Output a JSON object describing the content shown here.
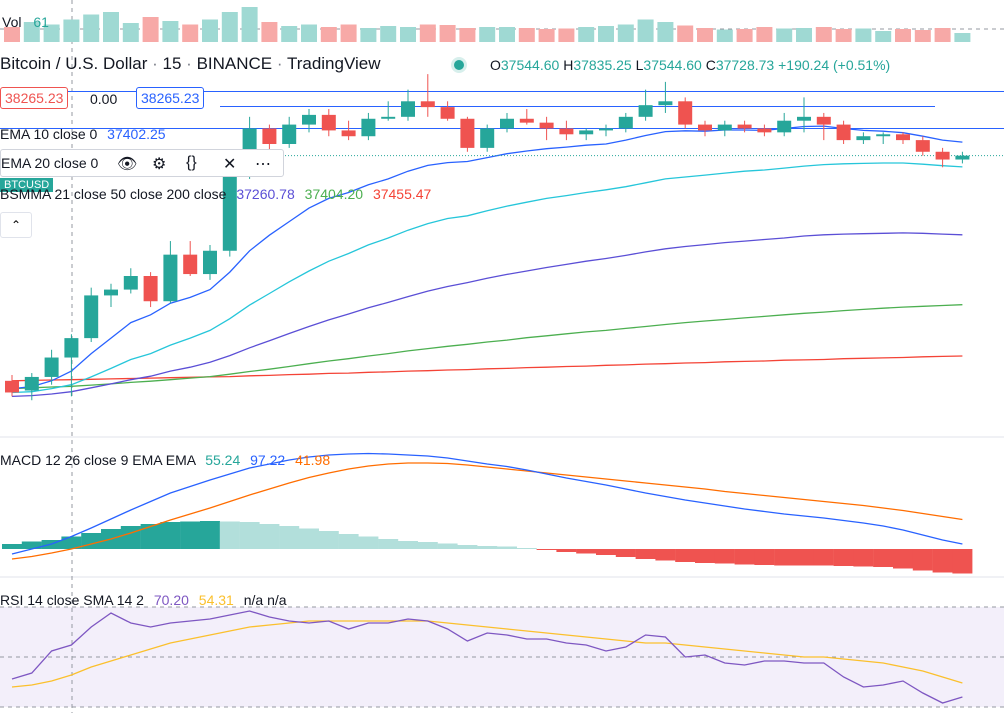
{
  "volume": {
    "label": "Vol",
    "value": "61"
  },
  "header": {
    "symbol": "Bitcoin / U.S. Dollar",
    "interval": "15",
    "exchange": "BINANCE",
    "source": "TradingView",
    "open_label": "O",
    "open": "37544.60",
    "high_label": "H",
    "high": "37835.25",
    "low_label": "L",
    "low": "37544.60",
    "close_label": "C",
    "close": "37728.73",
    "change": "+190.24 (+0.51%)"
  },
  "order": {
    "sell": "38265.23",
    "spread": "0.00",
    "buy": "38265.23"
  },
  "indicators": {
    "ema10": {
      "label": "EMA 10 close 0",
      "value": "37402.25"
    },
    "ema20": {
      "label": "EMA 20 close 0"
    },
    "smma": {
      "label": "BSMMA 21 close 50 close 200 close",
      "v1": "37260.78",
      "v2": "37404.20",
      "v3": "37455.47"
    },
    "macd": {
      "label": "MACD 12 26 close 9 EMA EMA",
      "v1": "55.24",
      "v2": "97.22",
      "v3": "41.98"
    },
    "rsi": {
      "label": "RSI 14 close SMA 14 2",
      "v1": "70.20",
      "v2": "54.31",
      "v3": "n/a",
      "v4": "n/a"
    }
  },
  "ticker_tag": "BTCUSD",
  "colors": {
    "up": "#26a69a",
    "down": "#ef5350",
    "ema10": "#2962ff",
    "ema20": "#26c6da",
    "smma21": "#5b4fd6",
    "smma50": "#4caf50",
    "smma200": "#f44336",
    "macd": "#2962ff",
    "signal": "#ff6d00",
    "rsi": "#7e57c2",
    "rsi_sma": "#fbc02d"
  },
  "chart_data": {
    "type": "candlestick",
    "candles": [
      {
        "o": 37520,
        "h": 37535,
        "l": 37480,
        "c": 37490
      },
      {
        "o": 37495,
        "h": 37540,
        "l": 37470,
        "c": 37530
      },
      {
        "o": 37530,
        "h": 37600,
        "l": 37510,
        "c": 37580
      },
      {
        "o": 37580,
        "h": 37640,
        "l": 37480,
        "c": 37630
      },
      {
        "o": 37630,
        "h": 37760,
        "l": 37620,
        "c": 37740
      },
      {
        "o": 37740,
        "h": 37770,
        "l": 37710,
        "c": 37755
      },
      {
        "o": 37755,
        "h": 37810,
        "l": 37745,
        "c": 37790
      },
      {
        "o": 37790,
        "h": 37800,
        "l": 37710,
        "c": 37725
      },
      {
        "o": 37725,
        "h": 37880,
        "l": 37720,
        "c": 37845
      },
      {
        "o": 37845,
        "h": 37880,
        "l": 37790,
        "c": 37795
      },
      {
        "o": 37795,
        "h": 37870,
        "l": 37780,
        "c": 37855
      },
      {
        "o": 37855,
        "h": 38070,
        "l": 37840,
        "c": 38050
      },
      {
        "o": 38050,
        "h": 38200,
        "l": 38040,
        "c": 38170
      },
      {
        "o": 38170,
        "h": 38180,
        "l": 38080,
        "c": 38130
      },
      {
        "o": 38130,
        "h": 38200,
        "l": 38120,
        "c": 38180
      },
      {
        "o": 38180,
        "h": 38220,
        "l": 38160,
        "c": 38205
      },
      {
        "o": 38205,
        "h": 38220,
        "l": 38150,
        "c": 38165
      },
      {
        "o": 38165,
        "h": 38190,
        "l": 38140,
        "c": 38150
      },
      {
        "o": 38150,
        "h": 38210,
        "l": 38140,
        "c": 38195
      },
      {
        "o": 38195,
        "h": 38240,
        "l": 38190,
        "c": 38200
      },
      {
        "o": 38200,
        "h": 38270,
        "l": 38190,
        "c": 38240
      },
      {
        "o": 38240,
        "h": 38310,
        "l": 38200,
        "c": 38225
      },
      {
        "o": 38225,
        "h": 38240,
        "l": 38190,
        "c": 38195
      },
      {
        "o": 38195,
        "h": 38200,
        "l": 38110,
        "c": 38120
      },
      {
        "o": 38120,
        "h": 38180,
        "l": 38110,
        "c": 38170
      },
      {
        "o": 38170,
        "h": 38210,
        "l": 38160,
        "c": 38195
      },
      {
        "o": 38195,
        "h": 38220,
        "l": 38180,
        "c": 38185
      },
      {
        "o": 38185,
        "h": 38200,
        "l": 38140,
        "c": 38170
      },
      {
        "o": 38170,
        "h": 38190,
        "l": 38140,
        "c": 38155
      },
      {
        "o": 38155,
        "h": 38170,
        "l": 38140,
        "c": 38165
      },
      {
        "o": 38165,
        "h": 38180,
        "l": 38150,
        "c": 38170
      },
      {
        "o": 38170,
        "h": 38210,
        "l": 38160,
        "c": 38200
      },
      {
        "o": 38200,
        "h": 38270,
        "l": 38190,
        "c": 38230
      },
      {
        "o": 38230,
        "h": 38290,
        "l": 38210,
        "c": 38240
      },
      {
        "o": 38240,
        "h": 38250,
        "l": 38170,
        "c": 38180
      },
      {
        "o": 38180,
        "h": 38190,
        "l": 38150,
        "c": 38165
      },
      {
        "o": 38165,
        "h": 38190,
        "l": 38150,
        "c": 38180
      },
      {
        "o": 38180,
        "h": 38190,
        "l": 38160,
        "c": 38170
      },
      {
        "o": 38170,
        "h": 38180,
        "l": 38150,
        "c": 38160
      },
      {
        "o": 38160,
        "h": 38210,
        "l": 38150,
        "c": 38190
      },
      {
        "o": 38190,
        "h": 38250,
        "l": 38160,
        "c": 38200
      },
      {
        "o": 38200,
        "h": 38210,
        "l": 38140,
        "c": 38180
      },
      {
        "o": 38180,
        "h": 38190,
        "l": 38130,
        "c": 38140
      },
      {
        "o": 38140,
        "h": 38160,
        "l": 38130,
        "c": 38150
      },
      {
        "o": 38150,
        "h": 38160,
        "l": 38130,
        "c": 38155
      },
      {
        "o": 38155,
        "h": 38160,
        "l": 38130,
        "c": 38140
      },
      {
        "o": 38140,
        "h": 38150,
        "l": 38100,
        "c": 38110
      },
      {
        "o": 38110,
        "h": 38120,
        "l": 38070,
        "c": 38090
      },
      {
        "o": 38090,
        "h": 38110,
        "l": 38080,
        "c": 38100
      }
    ],
    "ema10": [
      37500,
      37505,
      37520,
      37545,
      37590,
      37630,
      37670,
      37690,
      37720,
      37735,
      37755,
      37800,
      37855,
      37895,
      37930,
      37965,
      37990,
      38005,
      38025,
      38040,
      38060,
      38075,
      38082,
      38085,
      38095,
      38105,
      38112,
      38118,
      38122,
      38127,
      38130,
      38140,
      38152,
      38162,
      38164,
      38163,
      38166,
      38166,
      38165,
      38170,
      38175,
      38176,
      38170,
      38165,
      38163,
      38159,
      38150,
      38140,
      38135
    ],
    "ema20": [
      37490,
      37492,
      37500,
      37510,
      37530,
      37552,
      37575,
      37590,
      37612,
      37630,
      37650,
      37680,
      37715,
      37745,
      37775,
      37803,
      37828,
      37848,
      37870,
      37888,
      37908,
      37925,
      37938,
      37945,
      37958,
      37970,
      37980,
      37990,
      37997,
      38005,
      38012,
      38020,
      38030,
      38040,
      38045,
      38050,
      38055,
      38060,
      38063,
      38068,
      38073,
      38077,
      38079,
      38080,
      38081,
      38081,
      38078,
      38074,
      38071
    ],
    "smma21": [
      37480,
      37482,
      37486,
      37492,
      37502,
      37512,
      37523,
      37532,
      37545,
      37555,
      37568,
      37585,
      37605,
      37623,
      37642,
      37660,
      37677,
      37692,
      37708,
      37722,
      37737,
      37751,
      37763,
      37773,
      37784,
      37794,
      37803,
      37812,
      37820,
      37828,
      37835,
      37843,
      37852,
      37860,
      37866,
      37871,
      37876,
      37880,
      37884,
      37888,
      37893,
      37896,
      37898,
      37899,
      37900,
      37901,
      37900,
      37898,
      37896
    ],
    "smma50": [
      37500,
      37502,
      37504,
      37506,
      37509,
      37512,
      37516,
      37519,
      37523,
      37527,
      37531,
      37537,
      37544,
      37550,
      37557,
      37564,
      37571,
      37577,
      37584,
      37590,
      37597,
      37603,
      37609,
      37614,
      37620,
      37625,
      37631,
      37636,
      37641,
      37646,
      37650,
      37655,
      37660,
      37665,
      37670,
      37674,
      37678,
      37682,
      37686,
      37690,
      37694,
      37697,
      37701,
      37704,
      37707,
      37710,
      37712,
      37714,
      37716
    ],
    "smma200": [
      37520,
      37521,
      37522,
      37523,
      37524,
      37525,
      37526,
      37527,
      37528,
      37529,
      37530,
      37531,
      37533,
      37534,
      37536,
      37537,
      37539,
      37540,
      37542,
      37543,
      37545,
      37546,
      37548,
      37549,
      37551,
      37552,
      37554,
      37555,
      37557,
      37558,
      37560,
      37561,
      37563,
      37564,
      37566,
      37567,
      37569,
      37570,
      37571,
      37573,
      37574,
      37575,
      37577,
      37578,
      37579,
      37580,
      37582,
      37583,
      37584
    ],
    "sell_price": 38265.23,
    "hline_price": 38170,
    "vol": [
      30,
      40,
      35,
      45,
      55,
      60,
      38,
      50,
      42,
      35,
      45,
      60,
      70,
      40,
      32,
      35,
      30,
      35,
      28,
      32,
      30,
      35,
      34,
      28,
      30,
      30,
      28,
      26,
      27,
      30,
      32,
      35,
      45,
      40,
      33,
      28,
      25,
      26,
      30,
      27,
      28,
      30,
      26,
      27,
      22,
      26,
      24,
      28,
      18
    ],
    "macd": [
      -10,
      0,
      10,
      25,
      42,
      60,
      78,
      95,
      112,
      125,
      138,
      150,
      162,
      170,
      178,
      184,
      188,
      190,
      191,
      190,
      188,
      186,
      182,
      176,
      170,
      165,
      158,
      150,
      142,
      135,
      128,
      120,
      112,
      105,
      98,
      92,
      86,
      80,
      75,
      70,
      66,
      62,
      57,
      52,
      46,
      38,
      28,
      18,
      10
    ],
    "macd_signal": [
      -20,
      -15,
      -8,
      0,
      10,
      20,
      32,
      45,
      58,
      70,
      82,
      95,
      108,
      120,
      132,
      143,
      152,
      160,
      166,
      170,
      172,
      172,
      171,
      168,
      164,
      160,
      156,
      152,
      148,
      144,
      140,
      136,
      132,
      128,
      124,
      120,
      115,
      111,
      107,
      103,
      99,
      95,
      91,
      87,
      82,
      77,
      71,
      65,
      59
    ],
    "macd_hist": [
      10,
      15,
      18,
      25,
      32,
      40,
      46,
      50,
      54,
      55,
      56,
      55,
      54,
      50,
      46,
      41,
      36,
      30,
      25,
      20,
      16,
      14,
      11,
      8,
      6,
      5,
      2,
      -2,
      -6,
      -9,
      -12,
      -16,
      -20,
      -23,
      -26,
      -28,
      -29,
      -31,
      -32,
      -33,
      -33,
      -33,
      -34,
      -35,
      -36,
      -39,
      -43,
      -47,
      -49
    ],
    "rsi": [
      44,
      47,
      58,
      61,
      70,
      77,
      72,
      70,
      72,
      73,
      74,
      76,
      78,
      75,
      73,
      72,
      73,
      69,
      72,
      72,
      74,
      73,
      69,
      63,
      67,
      66,
      64,
      64,
      62,
      61,
      58,
      60,
      66,
      65,
      55,
      56,
      52,
      51,
      53,
      53,
      52,
      52,
      45,
      40,
      41,
      43,
      37,
      32,
      35
    ],
    "rsi_sma": [
      40,
      41,
      43,
      46,
      50,
      53,
      56,
      59,
      62,
      64,
      66,
      68,
      70,
      71,
      72,
      73,
      73,
      73,
      73,
      73,
      73,
      73,
      72,
      71,
      70,
      69,
      68,
      67,
      66,
      65,
      64,
      63,
      62,
      62,
      61,
      60,
      59,
      58,
      57,
      56,
      55,
      55,
      54,
      53,
      52,
      50,
      48,
      45,
      42
    ]
  }
}
